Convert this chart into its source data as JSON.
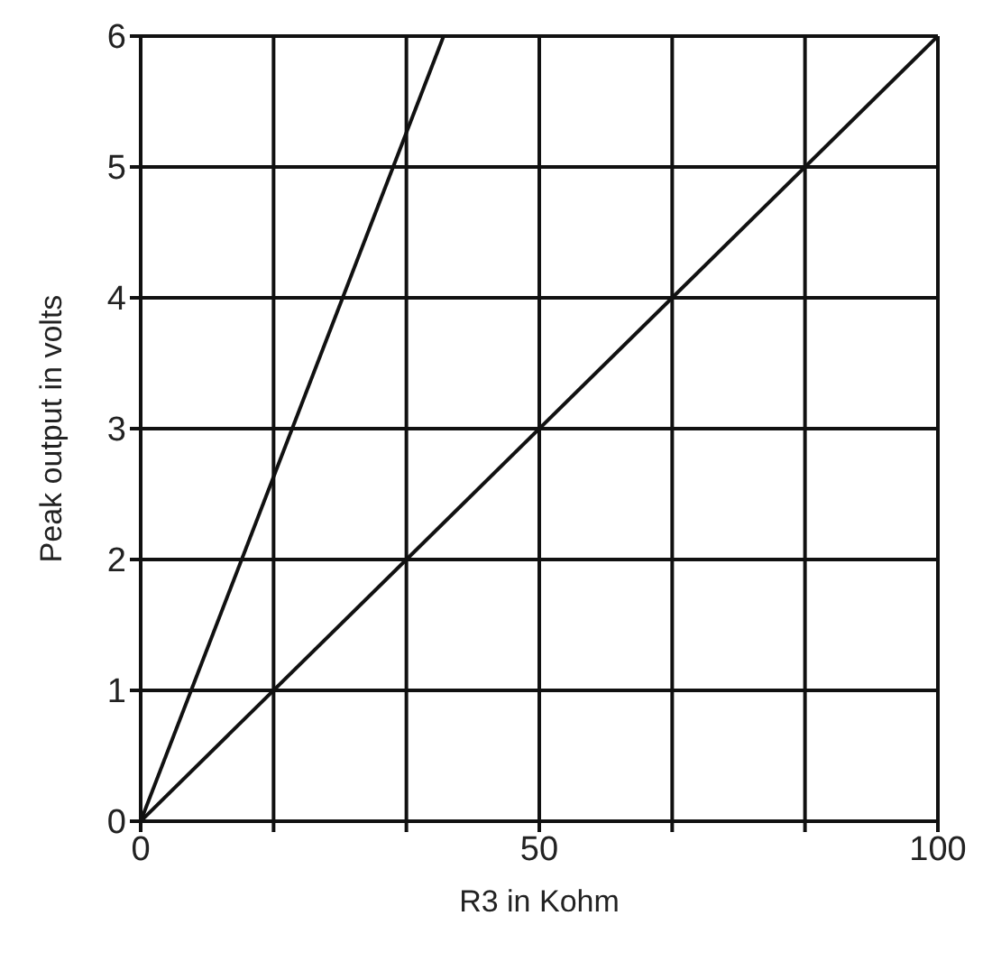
{
  "chart_data": {
    "type": "line",
    "xlabel": "R3 in Kohm",
    "ylabel": "Peak output in volts",
    "series": [
      {
        "color": "#111111",
        "x": [
          0,
          38
        ],
        "values": [
          0,
          6
        ]
      },
      {
        "color": "#111111",
        "x": [
          0,
          100
        ],
        "values": [
          0,
          6
        ]
      }
    ],
    "xlim": [
      0,
      100
    ],
    "ylim": [
      0,
      6
    ],
    "xticks": [
      0,
      {
        "value": 16.67,
        "label": null
      },
      {
        "value": 33.33,
        "label": null
      },
      50,
      {
        "value": 66.67,
        "label": null
      },
      {
        "value": 83.33,
        "label": null
      },
      100
    ],
    "yticks": [
      0,
      1,
      2,
      3,
      4,
      5,
      6
    ],
    "grid": true,
    "marker": "none",
    "line_style": "solid"
  }
}
